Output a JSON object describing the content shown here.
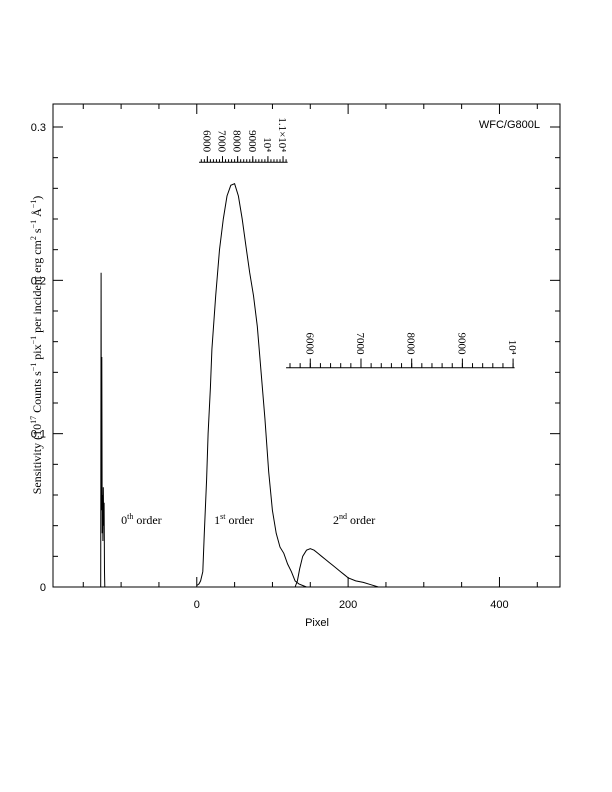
{
  "chart_data": {
    "type": "line",
    "title": "",
    "annotation_top_right": "WFC/G800L",
    "xlabel": "Pixel",
    "ylabel": "Sensitivity (10",
    "ylabel_sup1": "17",
    "ylabel_mid1": " Counts s",
    "ylabel_sup2": "−1",
    "ylabel_mid2": " pix",
    "ylabel_sup3": "−1",
    "ylabel_mid3": " per incident erg cm",
    "ylabel_sup4": "2",
    "ylabel_mid4": " s",
    "ylabel_sup5": "−1",
    "ylabel_mid5": " Å",
    "ylabel_sup6": "−1",
    "ylabel_end": ")",
    "xlim": [
      -190,
      480
    ],
    "ylim": [
      0,
      0.315
    ],
    "x_ticks": [
      0,
      200,
      400
    ],
    "x_tick_labels": [
      "0",
      "200",
      "400"
    ],
    "x_minor_step": 50,
    "y_ticks": [
      0,
      0.1,
      0.2,
      0.3
    ],
    "y_tick_labels": [
      "0",
      "0.1",
      "0.2",
      "0.3"
    ],
    "y_minor_step": 0.02,
    "grid": false,
    "order_labels": [
      {
        "base": "0",
        "sup": "th",
        "rest": " order",
        "x": -100,
        "y": 0.041
      },
      {
        "base": "1",
        "sup": "st",
        "rest": " order",
        "x": 23,
        "y": 0.041
      },
      {
        "base": "2",
        "sup": "nd",
        "rest": " order",
        "x": 180,
        "y": 0.041
      }
    ],
    "wavelength_scales": [
      {
        "name": "1st order",
        "y": 0.277,
        "tick_length_y": 0.004,
        "major_ticks": [
          {
            "x": 14,
            "label": "6000"
          },
          {
            "x": 34,
            "label": "7000"
          },
          {
            "x": 54,
            "label": "8000"
          },
          {
            "x": 74,
            "label": "9000"
          },
          {
            "x": 94,
            "label": "10⁴"
          },
          {
            "x": 114,
            "label": "1.1×10⁴"
          }
        ],
        "axis_x_range": [
          3,
          120
        ],
        "minor_step": 4
      },
      {
        "name": "2nd order",
        "y": 0.143,
        "tick_length_y": 0.006,
        "major_ticks": [
          {
            "x": 150,
            "label": "6000"
          },
          {
            "x": 217,
            "label": "7000"
          },
          {
            "x": 284,
            "label": "8000"
          },
          {
            "x": 351,
            "label": "9000"
          },
          {
            "x": 418,
            "label": "10⁴"
          }
        ],
        "axis_x_range": [
          118,
          420
        ],
        "minor_step": 13.4
      }
    ],
    "series": [
      {
        "order": "0th",
        "x": [
          -127,
          -126.5,
          -126,
          -125.5,
          -125,
          -124.5,
          -124,
          -123.5,
          -123,
          -122.5,
          -122,
          -121.5,
          -121
        ],
        "y": [
          0,
          0.205,
          0.05,
          0.15,
          0.035,
          0.06,
          0.03,
          0.065,
          0.04,
          0.055,
          0.01,
          0.0,
          0.0
        ]
      },
      {
        "order": "1st",
        "x": [
          0,
          3,
          5,
          8,
          10,
          13,
          15,
          18,
          20,
          25,
          30,
          35,
          40,
          45,
          50,
          55,
          60,
          65,
          70,
          75,
          80,
          85,
          90,
          95,
          100,
          105,
          110,
          115,
          120,
          125,
          130,
          135,
          140,
          145
        ],
        "y": [
          0.001,
          0.002,
          0.004,
          0.01,
          0.035,
          0.07,
          0.1,
          0.13,
          0.155,
          0.19,
          0.22,
          0.24,
          0.255,
          0.262,
          0.263,
          0.255,
          0.24,
          0.222,
          0.205,
          0.19,
          0.17,
          0.14,
          0.11,
          0.075,
          0.05,
          0.035,
          0.026,
          0.022,
          0.015,
          0.01,
          0.004,
          0.002,
          0.001,
          0.0
        ]
      },
      {
        "order": "2nd",
        "x": [
          130,
          133,
          136,
          140,
          145,
          150,
          155,
          160,
          165,
          170,
          175,
          180,
          185,
          190,
          195,
          200,
          210,
          220,
          230,
          240
        ],
        "y": [
          0.0,
          0.004,
          0.012,
          0.02,
          0.024,
          0.025,
          0.024,
          0.022,
          0.02,
          0.018,
          0.016,
          0.014,
          0.012,
          0.01,
          0.008,
          0.006,
          0.004,
          0.003,
          0.0015,
          0.0
        ]
      }
    ]
  }
}
